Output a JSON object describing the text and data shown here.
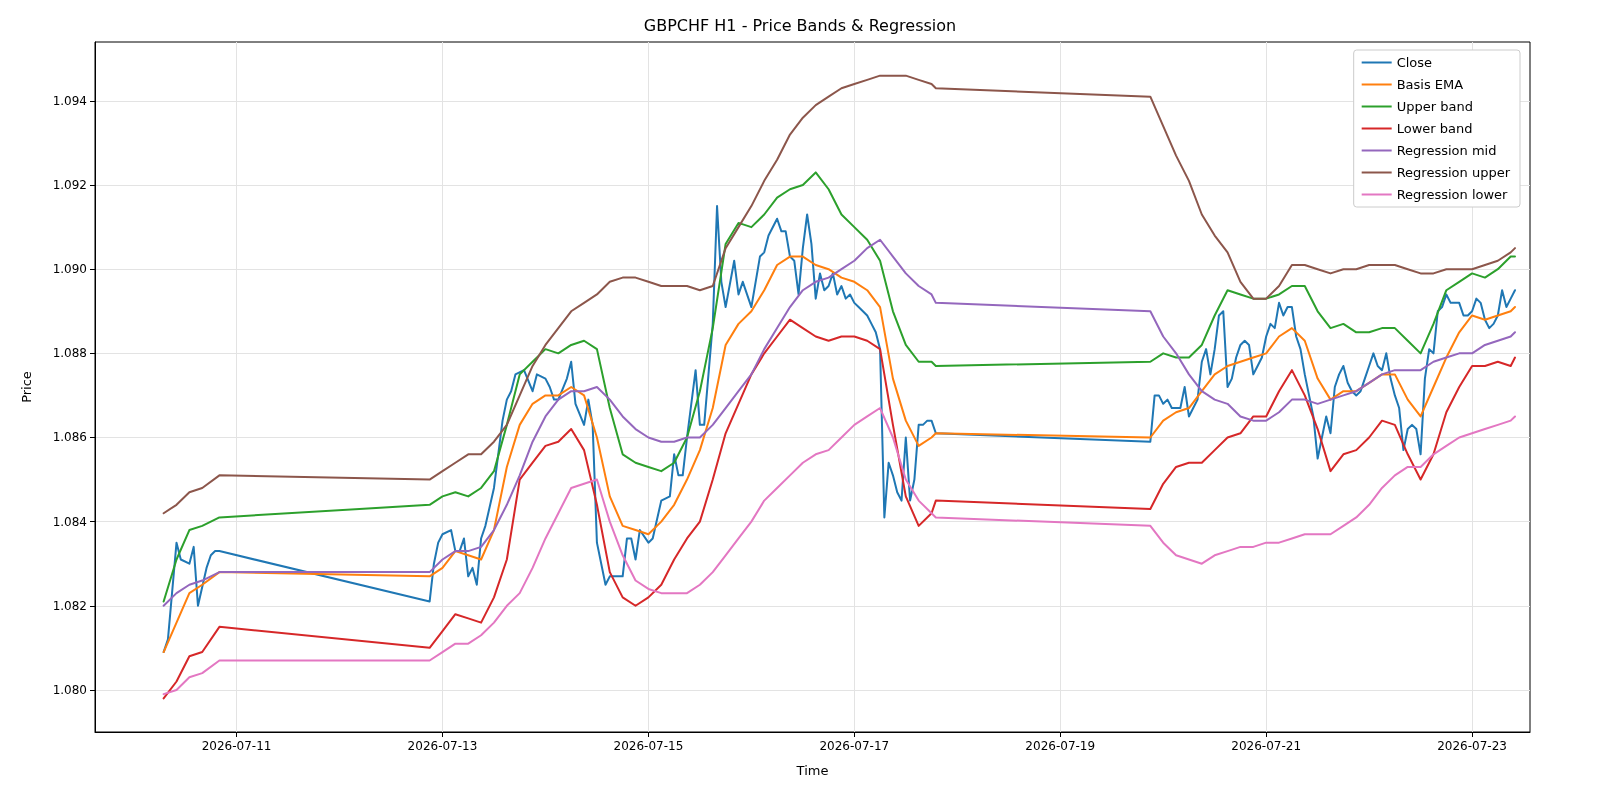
{
  "chart_data": {
    "type": "line",
    "title": "GBPCHF H1 - Price Bands & Regression",
    "xlabel": "Time",
    "ylabel": "Price",
    "xlim": [
      "2026-07-09T15:00",
      "2026-07-23T13:30"
    ],
    "xticks": [
      "2026-07-11",
      "2026-07-13",
      "2026-07-15",
      "2026-07-17",
      "2026-07-19",
      "2026-07-21",
      "2026-07-23"
    ],
    "ylim": [
      1.079,
      1.0954
    ],
    "yticks": [
      {
        "value": 1.08,
        "label": "1.080"
      },
      {
        "value": 1.082,
        "label": "1.082"
      },
      {
        "value": 1.084,
        "label": "1.084"
      },
      {
        "value": 1.086,
        "label": "1.086"
      },
      {
        "value": 1.088,
        "label": "1.088"
      },
      {
        "value": 1.09,
        "label": "1.090"
      },
      {
        "value": 1.092,
        "label": "1.092"
      },
      {
        "value": 1.094,
        "label": "1.094"
      }
    ],
    "grid": true,
    "legend": "top right",
    "x": [
      "2026-07-10T07:00",
      "2026-07-10T10:00",
      "2026-07-10T13:00",
      "2026-07-10T16:00",
      "2026-07-10T20:00",
      "2026-07-12T21:00",
      "2026-07-13T00:00",
      "2026-07-13T03:00",
      "2026-07-13T06:00",
      "2026-07-13T09:00",
      "2026-07-13T12:00",
      "2026-07-13T15:00",
      "2026-07-13T18:00",
      "2026-07-13T21:00",
      "2026-07-14T00:00",
      "2026-07-14T03:00",
      "2026-07-14T06:00",
      "2026-07-14T09:00",
      "2026-07-14T12:00",
      "2026-07-14T15:00",
      "2026-07-14T18:00",
      "2026-07-14T21:00",
      "2026-07-15T00:00",
      "2026-07-15T03:00",
      "2026-07-15T06:00",
      "2026-07-15T09:00",
      "2026-07-15T12:00",
      "2026-07-15T15:00",
      "2026-07-15T18:00",
      "2026-07-15T21:00",
      "2026-07-16T00:00",
      "2026-07-16T03:00",
      "2026-07-16T06:00",
      "2026-07-16T09:00",
      "2026-07-16T12:00",
      "2026-07-16T15:00",
      "2026-07-16T18:00",
      "2026-07-16T21:00",
      "2026-07-17T00:00",
      "2026-07-17T03:00",
      "2026-07-17T06:00",
      "2026-07-17T09:00",
      "2026-07-17T12:00",
      "2026-07-17T15:00",
      "2026-07-17T18:00",
      "2026-07-17T19:00",
      "2026-07-19T21:00",
      "2026-07-20T00:00",
      "2026-07-20T03:00",
      "2026-07-20T06:00",
      "2026-07-20T09:00",
      "2026-07-20T12:00",
      "2026-07-20T15:00",
      "2026-07-20T18:00",
      "2026-07-20T21:00",
      "2026-07-21T00:00",
      "2026-07-21T03:00",
      "2026-07-21T06:00",
      "2026-07-21T09:00",
      "2026-07-21T12:00",
      "2026-07-21T15:00",
      "2026-07-21T18:00",
      "2026-07-21T21:00",
      "2026-07-22T00:00",
      "2026-07-22T03:00",
      "2026-07-22T06:00",
      "2026-07-22T09:00",
      "2026-07-22T12:00",
      "2026-07-22T15:00",
      "2026-07-22T18:00",
      "2026-07-22T21:00",
      "2026-07-23T00:00",
      "2026-07-23T03:00",
      "2026-07-23T06:00",
      "2026-07-23T09:00",
      "2026-07-23T10:00"
    ],
    "series": [
      {
        "name": "Close",
        "color": "#1f77b4",
        "x": [
          "2026-07-10T07:00",
          "2026-07-10T08:00",
          "2026-07-10T10:00",
          "2026-07-10T11:00",
          "2026-07-10T13:00",
          "2026-07-10T14:00",
          "2026-07-10T15:00",
          "2026-07-10T17:00",
          "2026-07-10T18:00",
          "2026-07-10T19:00",
          "2026-07-10T20:00",
          "2026-07-12T21:00",
          "2026-07-12T22:00",
          "2026-07-12T23:00",
          "2026-07-13T00:00",
          "2026-07-13T02:00",
          "2026-07-13T03:00",
          "2026-07-13T04:00",
          "2026-07-13T05:00",
          "2026-07-13T06:00",
          "2026-07-13T07:00",
          "2026-07-13T08:00",
          "2026-07-13T09:00",
          "2026-07-13T10:00",
          "2026-07-13T12:00",
          "2026-07-13T14:00",
          "2026-07-13T15:00",
          "2026-07-13T16:00",
          "2026-07-13T17:00",
          "2026-07-13T19:00",
          "2026-07-13T21:00",
          "2026-07-13T22:00",
          "2026-07-14T00:00",
          "2026-07-14T01:00",
          "2026-07-14T02:00",
          "2026-07-14T03:00",
          "2026-07-14T05:00",
          "2026-07-14T06:00",
          "2026-07-14T07:00",
          "2026-07-14T09:00",
          "2026-07-14T10:00",
          "2026-07-14T11:00",
          "2026-07-14T12:00",
          "2026-07-14T14:00",
          "2026-07-14T15:00",
          "2026-07-14T17:00",
          "2026-07-14T18:00",
          "2026-07-14T19:00",
          "2026-07-14T20:00",
          "2026-07-14T21:00",
          "2026-07-14T22:00",
          "2026-07-15T00:00",
          "2026-07-15T01:00",
          "2026-07-15T03:00",
          "2026-07-15T05:00",
          "2026-07-15T06:00",
          "2026-07-15T07:00",
          "2026-07-15T08:00",
          "2026-07-15T09:00",
          "2026-07-15T11:00",
          "2026-07-15T12:00",
          "2026-07-15T13:00",
          "2026-07-15T14:00",
          "2026-07-15T15:00",
          "2026-07-15T16:00",
          "2026-07-15T17:00",
          "2026-07-15T18:00",
          "2026-07-15T20:00",
          "2026-07-15T21:00",
          "2026-07-15T22:00",
          "2026-07-16T00:00",
          "2026-07-16T02:00",
          "2026-07-16T03:00",
          "2026-07-16T04:00",
          "2026-07-16T06:00",
          "2026-07-16T07:00",
          "2026-07-16T08:00",
          "2026-07-16T09:00",
          "2026-07-16T10:00",
          "2026-07-16T11:00",
          "2026-07-16T12:00",
          "2026-07-16T13:00",
          "2026-07-16T14:00",
          "2026-07-16T15:00",
          "2026-07-16T16:00",
          "2026-07-16T17:00",
          "2026-07-16T18:00",
          "2026-07-16T19:00",
          "2026-07-16T20:00",
          "2026-07-16T21:00",
          "2026-07-16T22:00",
          "2026-07-16T23:00",
          "2026-07-17T00:00",
          "2026-07-17T01:00",
          "2026-07-17T02:00",
          "2026-07-17T03:00",
          "2026-07-17T04:00",
          "2026-07-17T05:00",
          "2026-07-17T06:00",
          "2026-07-17T07:00",
          "2026-07-17T08:00",
          "2026-07-17T09:00",
          "2026-07-17T10:00",
          "2026-07-17T11:00",
          "2026-07-17T12:00",
          "2026-07-17T13:00",
          "2026-07-17T14:00",
          "2026-07-17T15:00",
          "2026-07-17T16:00",
          "2026-07-17T17:00",
          "2026-07-17T18:00",
          "2026-07-17T19:00",
          "2026-07-19T21:00",
          "2026-07-19T22:00",
          "2026-07-19T23:00",
          "2026-07-20T00:00",
          "2026-07-20T01:00",
          "2026-07-20T02:00",
          "2026-07-20T03:00",
          "2026-07-20T04:00",
          "2026-07-20T05:00",
          "2026-07-20T06:00",
          "2026-07-20T07:00",
          "2026-07-20T08:00",
          "2026-07-20T09:00",
          "2026-07-20T10:00",
          "2026-07-20T11:00",
          "2026-07-20T12:00",
          "2026-07-20T13:00",
          "2026-07-20T14:00",
          "2026-07-20T15:00",
          "2026-07-20T16:00",
          "2026-07-20T17:00",
          "2026-07-20T18:00",
          "2026-07-20T19:00",
          "2026-07-20T20:00",
          "2026-07-20T21:00",
          "2026-07-20T22:00",
          "2026-07-20T23:00",
          "2026-07-21T00:00",
          "2026-07-21T01:00",
          "2026-07-21T02:00",
          "2026-07-21T03:00",
          "2026-07-21T04:00",
          "2026-07-21T05:00",
          "2026-07-21T06:00",
          "2026-07-21T07:00",
          "2026-07-21T08:00",
          "2026-07-21T09:00",
          "2026-07-21T10:00",
          "2026-07-21T11:00",
          "2026-07-21T12:00",
          "2026-07-21T13:00",
          "2026-07-21T14:00",
          "2026-07-21T15:00",
          "2026-07-21T16:00",
          "2026-07-21T17:00",
          "2026-07-21T18:00",
          "2026-07-21T19:00",
          "2026-07-21T20:00",
          "2026-07-21T21:00",
          "2026-07-21T22:00",
          "2026-07-21T23:00",
          "2026-07-22T00:00",
          "2026-07-22T01:00",
          "2026-07-22T02:00",
          "2026-07-22T03:00",
          "2026-07-22T04:00",
          "2026-07-22T05:00",
          "2026-07-22T06:00",
          "2026-07-22T07:00",
          "2026-07-22T08:00",
          "2026-07-22T09:00",
          "2026-07-22T10:00",
          "2026-07-22T11:00",
          "2026-07-22T12:00",
          "2026-07-22T13:00",
          "2026-07-22T14:00",
          "2026-07-22T15:00",
          "2026-07-22T16:00",
          "2026-07-22T17:00",
          "2026-07-22T18:00",
          "2026-07-22T19:00",
          "2026-07-22T20:00",
          "2026-07-22T21:00",
          "2026-07-22T22:00",
          "2026-07-22T23:00",
          "2026-07-23T00:00",
          "2026-07-23T01:00",
          "2026-07-23T02:00",
          "2026-07-23T03:00",
          "2026-07-23T04:00",
          "2026-07-23T05:00",
          "2026-07-23T06:00",
          "2026-07-23T07:00",
          "2026-07-23T08:00",
          "2026-07-23T09:00",
          "2026-07-23T10:00"
        ],
        "values": [
          1.0809,
          1.0812,
          1.0835,
          1.0831,
          1.083,
          1.0834,
          1.082,
          1.0829,
          1.0832,
          1.0833,
          1.0833,
          1.0821,
          1.083,
          1.0835,
          1.0837,
          1.0838,
          1.0833,
          1.0833,
          1.0836,
          1.0827,
          1.0829,
          1.0825,
          1.0836,
          1.0839,
          1.0848,
          1.0864,
          1.0869,
          1.0871,
          1.0875,
          1.0876,
          1.0871,
          1.0875,
          1.0874,
          1.0872,
          1.0869,
          1.0869,
          1.0874,
          1.0878,
          1.0868,
          1.0863,
          1.0869,
          1.0863,
          1.0835,
          1.0825,
          1.0827,
          1.0827,
          1.0827,
          1.0836,
          1.0836,
          1.0831,
          1.0838,
          1.0835,
          1.0836,
          1.0845,
          1.0846,
          1.0856,
          1.0851,
          1.0851,
          1.086,
          1.0876,
          1.0863,
          1.0863,
          1.0875,
          1.0887,
          1.0915,
          1.0897,
          1.0891,
          1.0902,
          1.0894,
          1.0897,
          1.0891,
          1.0903,
          1.0904,
          1.0908,
          1.0912,
          1.0909,
          1.0909,
          1.0903,
          1.0902,
          1.0894,
          1.0905,
          1.0913,
          1.0906,
          1.0893,
          1.0899,
          1.0895,
          1.0896,
          1.0899,
          1.0894,
          1.0896,
          1.0893,
          1.0894,
          1.0892,
          1.0891,
          1.089,
          1.0889,
          1.0887,
          1.0885,
          1.0881,
          1.0841,
          1.0854,
          1.0851,
          1.0847,
          1.0845,
          1.086,
          1.0845,
          1.085,
          1.0863,
          1.0863,
          1.0864,
          1.0864,
          1.0861,
          1.0859,
          1.087,
          1.087,
          1.0868,
          1.0869,
          1.0867,
          1.0867,
          1.0867,
          1.0872,
          1.0865,
          1.0867,
          1.0869,
          1.0878,
          1.0881,
          1.0875,
          1.0881,
          1.0889,
          1.089,
          1.0872,
          1.0874,
          1.0879,
          1.0882,
          1.0883,
          1.0882,
          1.0875,
          1.0877,
          1.0879,
          1.0884,
          1.0887,
          1.0886,
          1.0892,
          1.0889,
          1.0891,
          1.0891,
          1.0884,
          1.0881,
          1.0875,
          1.087,
          1.0865,
          1.0855,
          1.086,
          1.0865,
          1.0861,
          1.0872,
          1.0875,
          1.0877,
          1.0873,
          1.0871,
          1.087,
          1.0871,
          1.0874,
          1.0877,
          1.088,
          1.0877,
          1.0876,
          1.088,
          1.0874,
          1.087,
          1.0867,
          1.0857,
          1.0862,
          1.0863,
          1.0862,
          1.0856,
          1.0874,
          1.0881,
          1.088,
          1.089,
          1.0891,
          1.0894,
          1.0892,
          1.0892,
          1.0892,
          1.0889,
          1.0889,
          1.089,
          1.0893,
          1.0892,
          1.0888,
          1.0886,
          1.0887,
          1.0889,
          1.0895,
          1.0891,
          1.0893,
          1.0895
        ]
      },
      {
        "name": "Basis EMA",
        "color": "#ff7f0e",
        "values": [
          1.0809,
          1.0816,
          1.0823,
          1.0825,
          1.0828,
          1.0827,
          1.0829,
          1.0833,
          1.0832,
          1.0831,
          1.0838,
          1.0853,
          1.0863,
          1.0868,
          1.087,
          1.087,
          1.0872,
          1.087,
          1.086,
          1.0846,
          1.0839,
          1.0838,
          1.0837,
          1.084,
          1.0844,
          1.085,
          1.0857,
          1.0867,
          1.0882,
          1.0887,
          1.089,
          1.0895,
          1.0901,
          1.0903,
          1.0903,
          1.0901,
          1.09,
          1.0898,
          1.0897,
          1.0895,
          1.0891,
          1.0874,
          1.0864,
          1.0858,
          1.086,
          1.0861,
          1.086,
          1.0864,
          1.0866,
          1.0867,
          1.0871,
          1.0875,
          1.0877,
          1.0878,
          1.0879,
          1.088,
          1.0884,
          1.0886,
          1.0883,
          1.0874,
          1.0869,
          1.0871,
          1.0871,
          1.0873,
          1.0875,
          1.0875,
          1.0869,
          1.0865,
          1.0872,
          1.0879,
          1.0885,
          1.0889,
          1.0888,
          1.0889,
          1.089,
          1.0891
        ]
      },
      {
        "name": "Upper band",
        "color": "#2ca02c",
        "values": [
          1.0821,
          1.0831,
          1.0838,
          1.0839,
          1.0841,
          1.0844,
          1.0846,
          1.0847,
          1.0846,
          1.0848,
          1.0852,
          1.0863,
          1.0875,
          1.0878,
          1.0881,
          1.088,
          1.0882,
          1.0883,
          1.0881,
          1.0867,
          1.0856,
          1.0854,
          1.0853,
          1.0852,
          1.0854,
          1.086,
          1.0871,
          1.0886,
          1.0906,
          1.0911,
          1.091,
          1.0913,
          1.0917,
          1.0919,
          1.092,
          1.0923,
          1.0919,
          1.0913,
          1.091,
          1.0907,
          1.0902,
          1.089,
          1.0882,
          1.0878,
          1.0878,
          1.0877,
          1.0878,
          1.088,
          1.0879,
          1.0879,
          1.0882,
          1.0889,
          1.0895,
          1.0894,
          1.0893,
          1.0893,
          1.0894,
          1.0896,
          1.0896,
          1.089,
          1.0886,
          1.0887,
          1.0885,
          1.0885,
          1.0886,
          1.0886,
          1.0883,
          1.088,
          1.0887,
          1.0895,
          1.0897,
          1.0899,
          1.0898,
          1.09,
          1.0903,
          1.0903
        ]
      },
      {
        "name": "Lower band",
        "color": "#d62728",
        "values": [
          1.0798,
          1.0802,
          1.0808,
          1.0809,
          1.0815,
          1.081,
          1.0814,
          1.0818,
          1.0817,
          1.0816,
          1.0822,
          1.0831,
          1.085,
          1.0854,
          1.0858,
          1.0859,
          1.0862,
          1.0857,
          1.0844,
          1.0828,
          1.0822,
          1.082,
          1.0822,
          1.0825,
          1.0831,
          1.0836,
          1.084,
          1.085,
          1.0861,
          1.0868,
          1.0875,
          1.088,
          1.0884,
          1.0888,
          1.0886,
          1.0884,
          1.0883,
          1.0884,
          1.0884,
          1.0883,
          1.0881,
          1.0863,
          1.0846,
          1.0839,
          1.0842,
          1.0845,
          1.0843,
          1.0849,
          1.0853,
          1.0854,
          1.0854,
          1.0857,
          1.086,
          1.0861,
          1.0865,
          1.0865,
          1.0871,
          1.0876,
          1.087,
          1.0862,
          1.0852,
          1.0856,
          1.0857,
          1.086,
          1.0864,
          1.0863,
          1.0856,
          1.085,
          1.0856,
          1.0866,
          1.0872,
          1.0877,
          1.0877,
          1.0878,
          1.0877,
          1.0879
        ]
      },
      {
        "name": "Regression mid",
        "color": "#9467bd",
        "values": [
          1.082,
          1.0823,
          1.0825,
          1.0826,
          1.0828,
          1.0828,
          1.0831,
          1.0833,
          1.0833,
          1.0834,
          1.0838,
          1.0844,
          1.0851,
          1.0859,
          1.0865,
          1.0869,
          1.0871,
          1.0871,
          1.0872,
          1.0869,
          1.0865,
          1.0862,
          1.086,
          1.0859,
          1.0859,
          1.086,
          1.086,
          1.0863,
          1.0867,
          1.0871,
          1.0875,
          1.0881,
          1.0886,
          1.0891,
          1.0895,
          1.0897,
          1.0898,
          1.09,
          1.0902,
          1.0905,
          1.0907,
          1.0903,
          1.0899,
          1.0896,
          1.0894,
          1.0892,
          1.089,
          1.0884,
          1.088,
          1.0875,
          1.0871,
          1.0869,
          1.0868,
          1.0865,
          1.0864,
          1.0864,
          1.0866,
          1.0869,
          1.0869,
          1.0868,
          1.0869,
          1.087,
          1.0871,
          1.0873,
          1.0875,
          1.0876,
          1.0876,
          1.0876,
          1.0878,
          1.0879,
          1.088,
          1.088,
          1.0882,
          1.0883,
          1.0884,
          1.0885
        ]
      },
      {
        "name": "Regression upper",
        "color": "#8c564b",
        "values": [
          1.0842,
          1.0844,
          1.0847,
          1.0848,
          1.0851,
          1.085,
          1.0852,
          1.0854,
          1.0856,
          1.0856,
          1.0859,
          1.0863,
          1.087,
          1.0877,
          1.0882,
          1.0886,
          1.089,
          1.0892,
          1.0894,
          1.0897,
          1.0898,
          1.0898,
          1.0897,
          1.0896,
          1.0896,
          1.0896,
          1.0895,
          1.0896,
          1.0905,
          1.091,
          1.0915,
          1.0921,
          1.0926,
          1.0932,
          1.0936,
          1.0939,
          1.0941,
          1.0943,
          1.0944,
          1.0945,
          1.0946,
          1.0946,
          1.0946,
          1.0945,
          1.0944,
          1.0943,
          1.0941,
          1.0934,
          1.0927,
          1.0921,
          1.0913,
          1.0908,
          1.0904,
          1.0897,
          1.0893,
          1.0893,
          1.0896,
          1.0901,
          1.0901,
          1.09,
          1.0899,
          1.09,
          1.09,
          1.0901,
          1.0901,
          1.0901,
          1.09,
          1.0899,
          1.0899,
          1.09,
          1.09,
          1.09,
          1.0901,
          1.0902,
          1.0904,
          1.0905
        ]
      },
      {
        "name": "Regression lower",
        "color": "#e377c2",
        "values": [
          1.0799,
          1.08,
          1.0803,
          1.0804,
          1.0807,
          1.0807,
          1.0809,
          1.0811,
          1.0811,
          1.0813,
          1.0816,
          1.082,
          1.0823,
          1.0829,
          1.0836,
          1.0842,
          1.0848,
          1.0849,
          1.085,
          1.084,
          1.0832,
          1.0826,
          1.0824,
          1.0823,
          1.0823,
          1.0823,
          1.0825,
          1.0828,
          1.0832,
          1.0836,
          1.084,
          1.0845,
          1.0848,
          1.0851,
          1.0854,
          1.0856,
          1.0857,
          1.086,
          1.0863,
          1.0865,
          1.0867,
          1.086,
          1.085,
          1.0845,
          1.0842,
          1.0841,
          1.0839,
          1.0835,
          1.0832,
          1.0831,
          1.083,
          1.0832,
          1.0833,
          1.0834,
          1.0834,
          1.0835,
          1.0835,
          1.0836,
          1.0837,
          1.0837,
          1.0837,
          1.0839,
          1.0841,
          1.0844,
          1.0848,
          1.0851,
          1.0853,
          1.0853,
          1.0856,
          1.0858,
          1.086,
          1.0861,
          1.0862,
          1.0863,
          1.0864,
          1.0865
        ]
      }
    ]
  }
}
